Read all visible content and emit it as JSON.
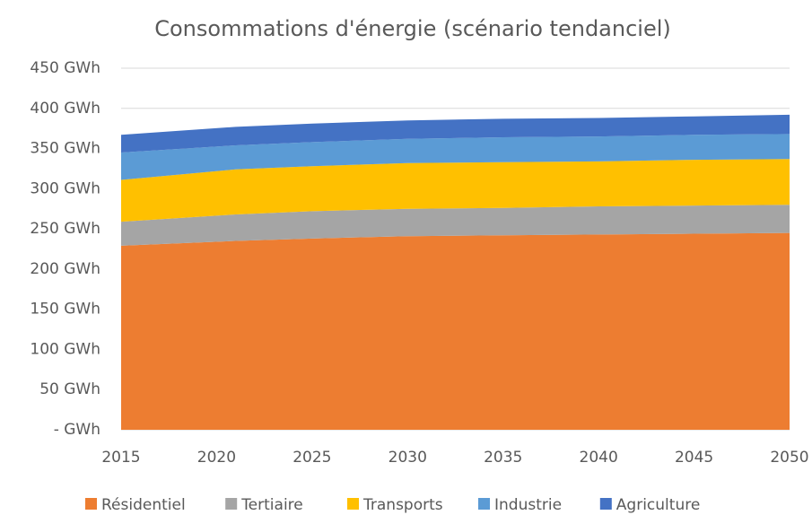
{
  "chart_data": {
    "type": "stacked_area",
    "title": "Consommations d'énergie (scénario tendanciel)",
    "x": [
      2015,
      2021,
      2025,
      2030,
      2035,
      2040,
      2045,
      2050
    ],
    "series": [
      {
        "name": "Résidentiel",
        "color": "#ed7d31",
        "values": [
          229,
          235,
          238,
          241,
          242,
          243,
          244,
          245
        ]
      },
      {
        "name": "Tertiaire",
        "color": "#a5a5a5",
        "values": [
          30,
          33,
          34,
          34,
          34,
          35,
          35,
          35
        ]
      },
      {
        "name": "Transports",
        "color": "#ffc000",
        "values": [
          52,
          56,
          56,
          57,
          57,
          56,
          57,
          57
        ]
      },
      {
        "name": "Industrie",
        "color": "#5b9bd5",
        "values": [
          34,
          30,
          30,
          30,
          31,
          31,
          31,
          31
        ]
      },
      {
        "name": "Agriculture",
        "color": "#4472c4",
        "values": [
          22,
          23,
          23,
          23,
          23,
          23,
          23,
          24
        ]
      }
    ],
    "xlim": [
      2015,
      2050
    ],
    "xticks": [
      2015,
      2020,
      2025,
      2030,
      2035,
      2040,
      2045,
      2050
    ],
    "ylim": [
      0,
      450
    ],
    "yticks": [
      {
        "value": 0,
        "label": "-  GWh"
      },
      {
        "value": 50,
        "label": "50  GWh"
      },
      {
        "value": 100,
        "label": "100  GWh"
      },
      {
        "value": 150,
        "label": "150  GWh"
      },
      {
        "value": 200,
        "label": "200  GWh"
      },
      {
        "value": 250,
        "label": "250  GWh"
      },
      {
        "value": 300,
        "label": "300  GWh"
      },
      {
        "value": 350,
        "label": "350  GWh"
      },
      {
        "value": 400,
        "label": "400  GWh"
      },
      {
        "value": 450,
        "label": "450  GWh"
      }
    ],
    "grid": true,
    "legend": "bottom"
  }
}
